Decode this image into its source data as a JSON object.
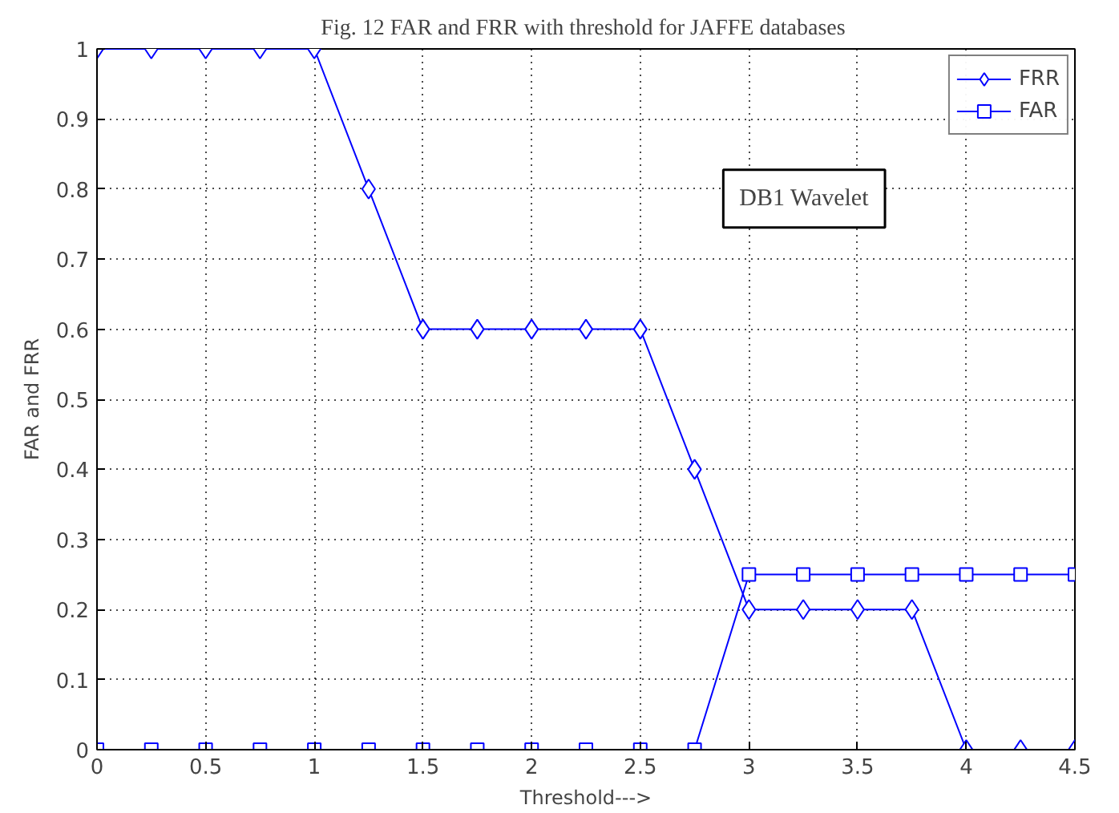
{
  "chart_data": {
    "type": "line",
    "title": "Fig. 12  FAR and FRR with threshold for JAFFE databases",
    "xlabel": "Threshold--->",
    "ylabel": "FAR and FRR",
    "x": [
      0,
      0.25,
      0.5,
      0.75,
      1,
      1.25,
      1.5,
      1.75,
      2,
      2.25,
      2.5,
      2.75,
      3,
      3.25,
      3.5,
      3.75,
      4,
      4.25,
      4.5
    ],
    "series": [
      {
        "name": "FRR",
        "color": "#0000ff",
        "marker": "diamond",
        "values": [
          1,
          1,
          1,
          1,
          1,
          0.8,
          0.6,
          0.6,
          0.6,
          0.6,
          0.6,
          0.4,
          0.2,
          0.2,
          0.2,
          0.2,
          0,
          0,
          0
        ]
      },
      {
        "name": "FAR",
        "color": "#0000ff",
        "marker": "square",
        "values": [
          0,
          0,
          0,
          0,
          0,
          0,
          0,
          0,
          0,
          0,
          0,
          0,
          0.25,
          0.25,
          0.25,
          0.25,
          0.25,
          0.25,
          0.25
        ]
      }
    ],
    "xlim": [
      0,
      4.5
    ],
    "xticks": [
      0,
      0.5,
      1,
      1.5,
      2,
      2.5,
      3,
      3.5,
      4,
      4.5
    ],
    "ylim": [
      0,
      1
    ],
    "yticks": [
      0,
      0.1,
      0.2,
      0.3,
      0.4,
      0.5,
      0.6,
      0.7,
      0.8,
      0.9,
      1
    ],
    "grid": true,
    "legend": "top right",
    "line_style": "solid",
    "annotations": [
      "DB1 Wavelet"
    ]
  }
}
